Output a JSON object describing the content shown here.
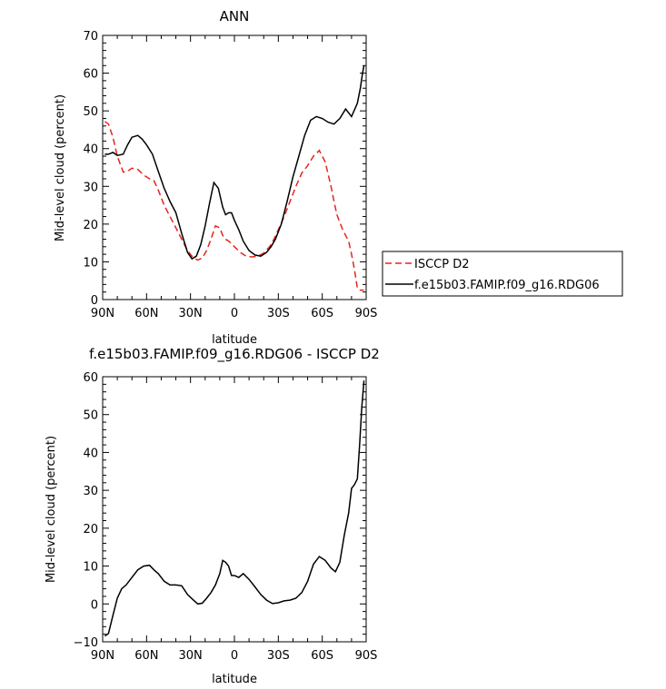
{
  "chart_data": [
    {
      "type": "line",
      "title": "ANN",
      "xlabel": "latitude",
      "ylabel": "Mid-level cloud (percent)",
      "xlim": [
        90,
        -90
      ],
      "ylim": [
        0,
        70
      ],
      "x_ticks": [
        90,
        60,
        30,
        0,
        -30,
        -60,
        -90
      ],
      "x_tick_labels": [
        "90N",
        "60N",
        "30N",
        "0",
        "30S",
        "60S",
        "90S"
      ],
      "y_ticks": [
        0,
        10,
        20,
        30,
        40,
        50,
        60,
        70
      ],
      "y_tick_labels": [
        "0",
        "10",
        "20",
        "30",
        "40",
        "50",
        "60",
        "70"
      ],
      "grid": false,
      "legend": "right",
      "series": [
        {
          "name": "ISCCP D2",
          "color": "#e8241c",
          "style": "dashed",
          "x": [
            88.5,
            86,
            83,
            80,
            76,
            73,
            70,
            66,
            62,
            58,
            55,
            52,
            48,
            44,
            40,
            36,
            32,
            28,
            25,
            22,
            19,
            16,
            13,
            10,
            8,
            6,
            4,
            2,
            0,
            -4,
            -8,
            -12,
            -16,
            -20,
            -24,
            -27,
            -30,
            -34,
            -38,
            -42,
            -46,
            -50,
            -54,
            -58,
            -62,
            -66,
            -68,
            -70,
            -72,
            -74,
            -76,
            -78,
            -80,
            -82,
            -84,
            -86,
            -88.5
          ],
          "y": [
            47.2,
            46.5,
            43,
            38,
            33.8,
            34,
            34.8,
            34.5,
            33,
            32,
            31.5,
            29,
            25,
            22,
            19,
            16,
            13,
            11,
            10.5,
            11,
            13,
            16,
            19.5,
            19,
            17,
            16,
            15.5,
            14.8,
            14,
            12.5,
            11.5,
            11.3,
            11.5,
            12.3,
            14,
            16,
            18.5,
            22,
            26,
            30,
            33.5,
            35.5,
            38,
            39.5,
            36.5,
            30,
            26,
            22.5,
            20.5,
            18.5,
            17,
            15.5,
            12,
            8,
            3,
            2.5,
            2.5
          ]
        },
        {
          "name": "f.e15b03.FAMIP.f09_g16.RDG06",
          "color": "#000000",
          "style": "solid",
          "x": [
            88.5,
            86,
            83,
            80,
            76,
            73,
            70,
            66,
            63,
            60,
            56,
            52,
            48,
            44,
            40,
            36,
            32,
            29,
            26,
            23,
            20,
            17,
            14,
            11,
            8,
            6,
            4,
            2,
            0,
            -3,
            -6,
            -10,
            -14,
            -18,
            -22,
            -25,
            -28,
            -32,
            -36,
            -40,
            -44,
            -48,
            -52,
            -56,
            -60,
            -64,
            -68,
            -72,
            -76,
            -80,
            -84,
            -86,
            -87.5,
            -88.5
          ],
          "y": [
            38.5,
            38.5,
            39,
            38.2,
            38.5,
            41,
            43,
            43.5,
            42.5,
            41,
            38.5,
            34,
            29.5,
            26,
            23,
            17.5,
            12.5,
            10.8,
            11.5,
            14.5,
            19.5,
            25.5,
            31,
            29.5,
            24.5,
            22.5,
            23,
            23,
            21,
            18.5,
            15.5,
            13,
            11.8,
            11.5,
            12.5,
            14,
            16,
            20,
            26,
            32.5,
            38,
            43.5,
            47.5,
            48.5,
            48,
            47,
            46.5,
            48,
            50.5,
            48.5,
            52,
            56,
            60,
            62
          ]
        }
      ]
    },
    {
      "type": "line",
      "title": "f.e15b03.FAMIP.f09_g16.RDG06 - ISCCP D2",
      "xlabel": "latitude",
      "ylabel": "Mid-level cloud (percent)",
      "xlim": [
        90,
        -90
      ],
      "ylim": [
        -10,
        60
      ],
      "x_ticks": [
        90,
        60,
        30,
        0,
        -30,
        -60,
        -90
      ],
      "x_tick_labels": [
        "90N",
        "60N",
        "30N",
        "0",
        "30S",
        "60S",
        "90S"
      ],
      "y_ticks": [
        -10,
        0,
        10,
        20,
        30,
        40,
        50,
        60
      ],
      "y_tick_labels": [
        "−10",
        "0",
        "10",
        "20",
        "30",
        "40",
        "50",
        "60"
      ],
      "grid": false,
      "series": [
        {
          "color": "#000000",
          "style": "solid",
          "x": [
            88.5,
            86,
            83,
            80,
            77,
            74,
            70,
            66,
            62,
            58,
            55,
            52,
            48,
            44,
            40,
            36,
            32,
            28,
            25,
            22,
            19,
            16,
            13,
            10,
            8,
            6,
            4,
            2,
            0,
            -3,
            -6,
            -10,
            -14,
            -18,
            -22,
            -26,
            -30,
            -34,
            -38,
            -42,
            -46,
            -50,
            -54,
            -58,
            -62,
            -66,
            -69,
            -72,
            -75,
            -78,
            -80,
            -82,
            -84,
            -85.5,
            -87,
            -88.5
          ],
          "y": [
            -8.5,
            -7.8,
            -3,
            1.5,
            4,
            5,
            7,
            9,
            10,
            10.2,
            9,
            8,
            6,
            5,
            5,
            4.8,
            2.5,
            1,
            0,
            0.2,
            1.5,
            3,
            5,
            8,
            11.5,
            11,
            10,
            7.5,
            7.5,
            7,
            8,
            6.5,
            4.5,
            2.5,
            1,
            0.1,
            0.3,
            0.8,
            1,
            1.5,
            3,
            6,
            10.5,
            12.5,
            11.5,
            9.5,
            8.5,
            11,
            18,
            24,
            30.5,
            31.5,
            33,
            42,
            52,
            59
          ]
        }
      ]
    }
  ]
}
